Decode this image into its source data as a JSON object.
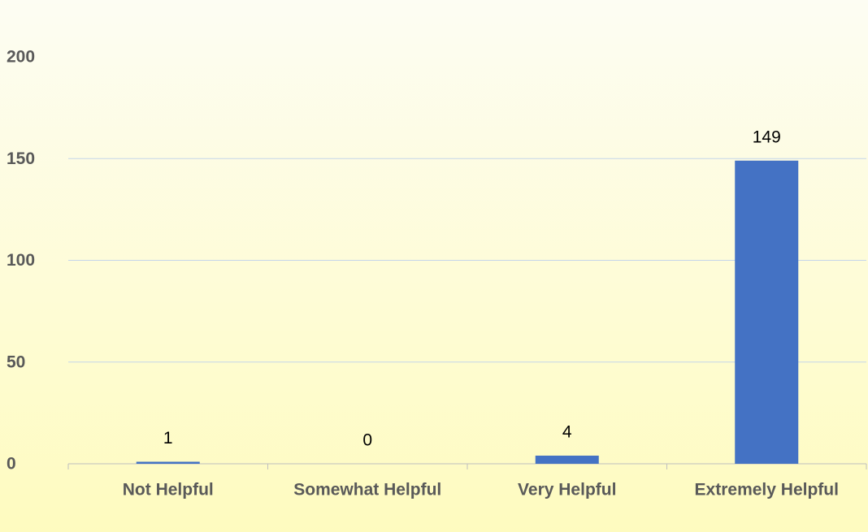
{
  "chart_data": {
    "type": "bar",
    "categories": [
      "Not Helpful",
      "Somewhat Helpful",
      "Very Helpful",
      "Extremely Helpful"
    ],
    "values": [
      1,
      0,
      4,
      149
    ],
    "color": "#4472c4",
    "ylim": [
      0,
      200
    ],
    "yticks": [
      0,
      50,
      100,
      150,
      200
    ],
    "grid": true
  }
}
